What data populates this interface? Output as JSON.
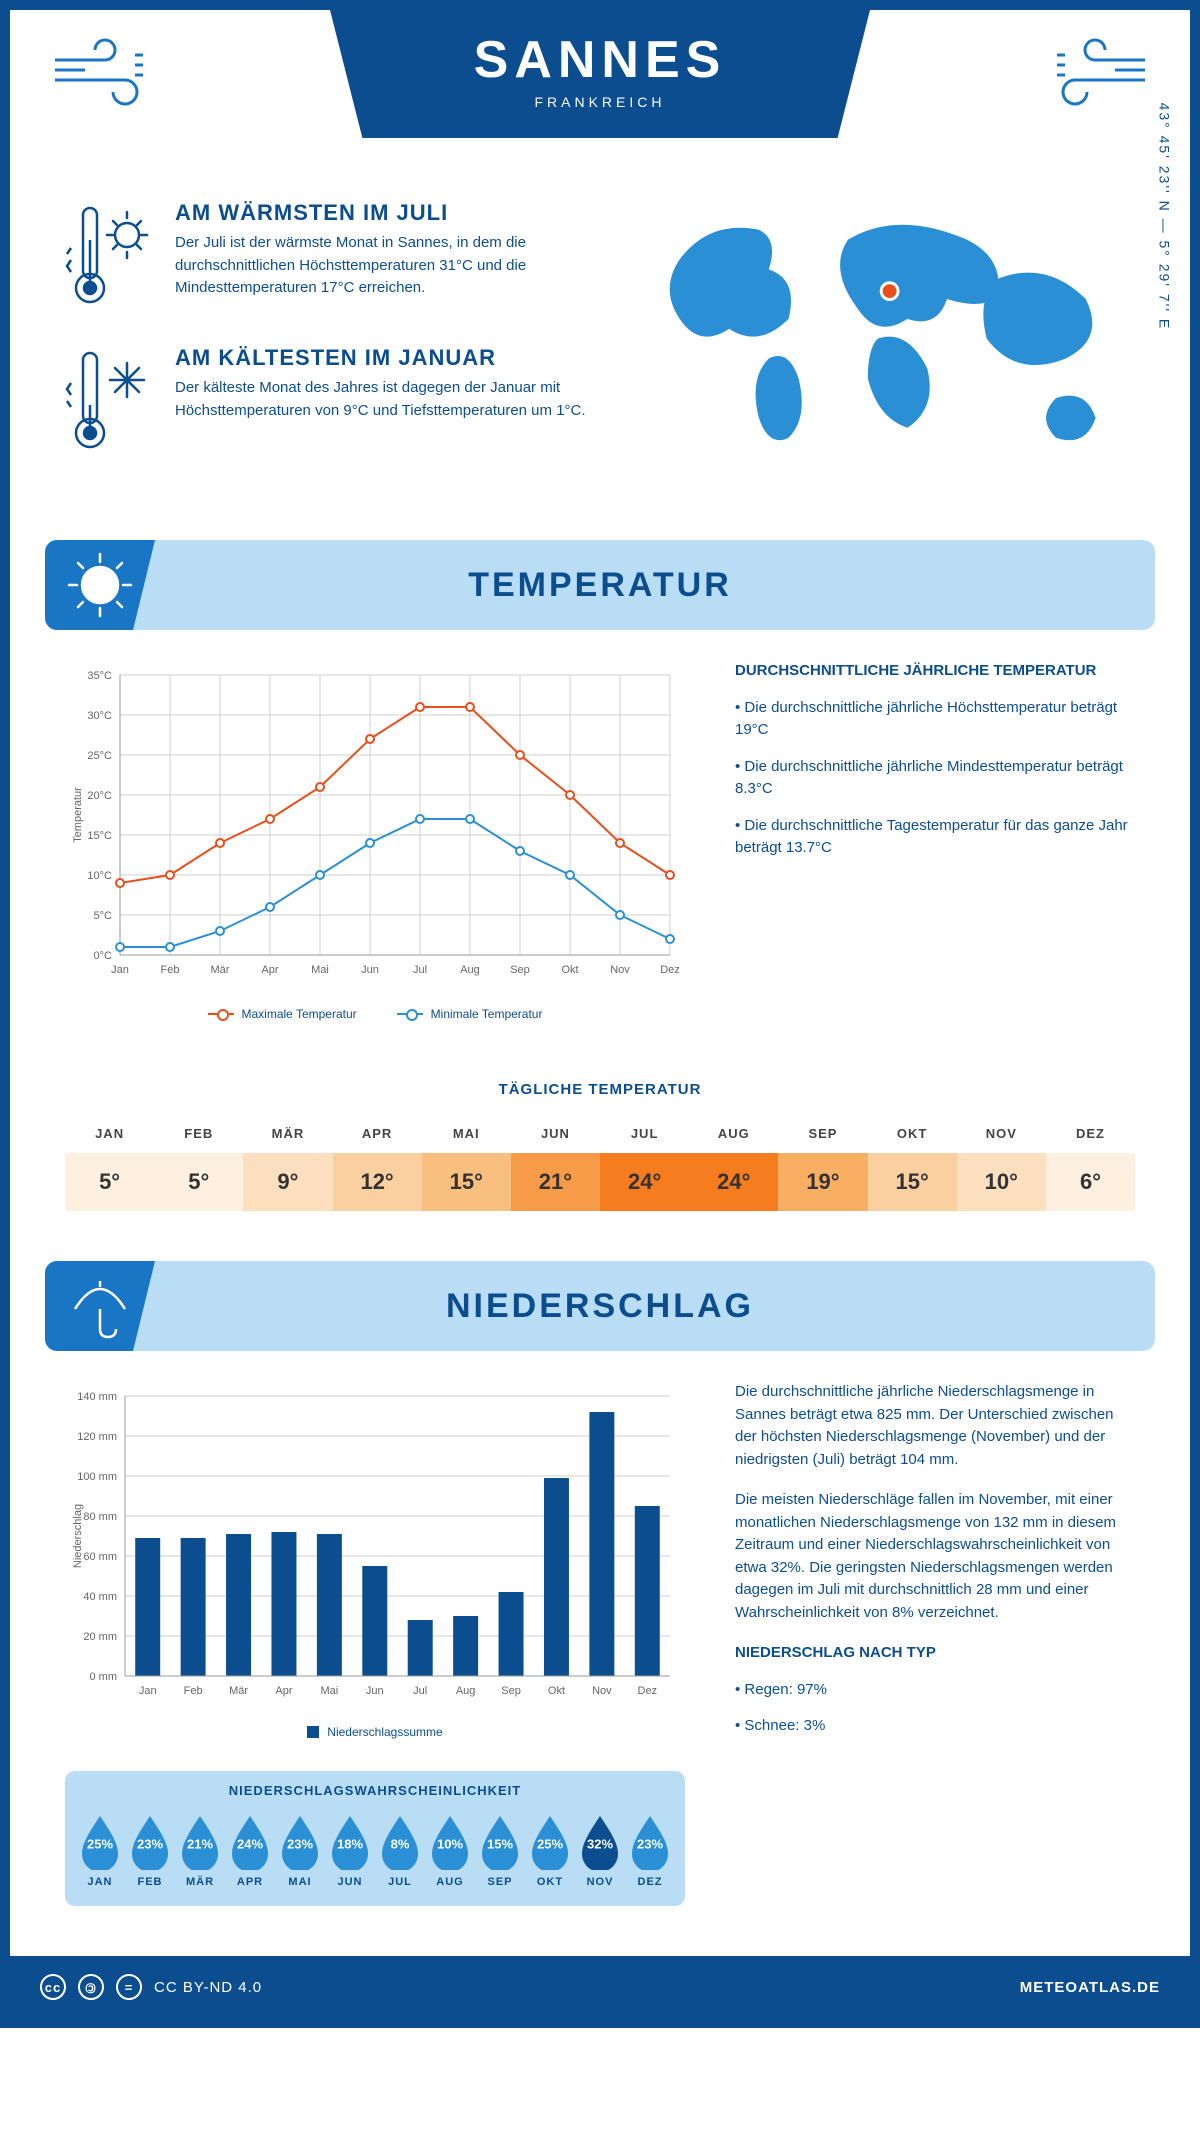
{
  "header": {
    "city": "SANNES",
    "country": "FRANKREICH"
  },
  "coords": "43° 45' 23'' N — 5° 29' 7'' E",
  "facts": {
    "warm": {
      "title": "AM WÄRMSTEN IM JULI",
      "text": "Der Juli ist der wärmste Monat in Sannes, in dem die durchschnittlichen Höchsttemperaturen 31°C und die Mindesttemperaturen 17°C erreichen."
    },
    "cold": {
      "title": "AM KÄLTESTEN IM JANUAR",
      "text": "Der kälteste Monat des Jahres ist dagegen der Januar mit Höchsttemperaturen von 9°C und Tiefsttemperaturen um 1°C."
    }
  },
  "sections": {
    "temp": "TEMPERATUR",
    "precip": "NIEDERSCHLAG"
  },
  "months": [
    "Jan",
    "Feb",
    "Mär",
    "Apr",
    "Mai",
    "Jun",
    "Jul",
    "Aug",
    "Sep",
    "Okt",
    "Nov",
    "Dez"
  ],
  "months_upper": [
    "JAN",
    "FEB",
    "MÄR",
    "APR",
    "MAI",
    "JUN",
    "JUL",
    "AUG",
    "SEP",
    "OKT",
    "NOV",
    "DEZ"
  ],
  "temp_chart": {
    "type": "line",
    "ylabel": "Temperatur",
    "ylim": [
      0,
      35
    ],
    "ytick_step": 5,
    "ytick_suffix": "°C",
    "grid_color": "#cfcfcf",
    "axis_color": "#999",
    "series": [
      {
        "name": "Maximale Temperatur",
        "color": "#e94e1b",
        "values": [
          9,
          10,
          14,
          17,
          21,
          27,
          31,
          31,
          25,
          20,
          14,
          10
        ]
      },
      {
        "name": "Minimale Temperatur",
        "color": "#2a8fd4",
        "values": [
          1,
          1,
          3,
          6,
          10,
          14,
          17,
          17,
          13,
          10,
          5,
          2
        ]
      }
    ],
    "marker": "circle",
    "marker_fill": "#ffffff",
    "line_width": 2,
    "marker_size": 4
  },
  "temp_text": {
    "heading": "DURCHSCHNITTLICHE JÄHRLICHE TEMPERATUR",
    "b1": "• Die durchschnittliche jährliche Höchsttemperatur beträgt 19°C",
    "b2": "• Die durchschnittliche jährliche Mindesttemperatur beträgt 8.3°C",
    "b3": "• Die durchschnittliche Tagestemperatur für das ganze Jahr beträgt 13.7°C"
  },
  "daily_temp": {
    "heading": "TÄGLICHE TEMPERATUR",
    "values": [
      "5°",
      "5°",
      "9°",
      "12°",
      "15°",
      "21°",
      "24°",
      "24°",
      "19°",
      "15°",
      "10°",
      "6°"
    ],
    "colors": [
      "#fdf0e1",
      "#fdf0e1",
      "#fbdfbf",
      "#fad0a0",
      "#f9bf7f",
      "#f79b49",
      "#f57c1f",
      "#f57c1f",
      "#f8af63",
      "#fad0a0",
      "#fbdfbf",
      "#fdf0e1"
    ]
  },
  "precip_chart": {
    "type": "bar",
    "ylabel": "Niederschlag",
    "ylim": [
      0,
      140
    ],
    "ytick_step": 20,
    "ytick_suffix": " mm",
    "bar_color": "#0b4d8f",
    "grid_color": "#cfcfcf",
    "values": [
      69,
      69,
      71,
      72,
      71,
      55,
      28,
      30,
      42,
      99,
      132,
      85
    ],
    "legend": "Niederschlagssumme"
  },
  "precip_text": {
    "p1": "Die durchschnittliche jährliche Niederschlagsmenge in Sannes beträgt etwa 825 mm. Der Unterschied zwischen der höchsten Niederschlagsmenge (November) und der niedrigsten (Juli) beträgt 104 mm.",
    "p2": "Die meisten Niederschläge fallen im November, mit einer monatlichen Niederschlagsmenge von 132 mm in diesem Zeitraum und einer Niederschlagswahrscheinlichkeit von etwa 32%. Die geringsten Niederschlagsmengen werden dagegen im Juli mit durchschnittlich 28 mm und einer Wahrscheinlichkeit von 8% verzeichnet.",
    "type_heading": "NIEDERSCHLAG NACH TYP",
    "type_b1": "• Regen: 97%",
    "type_b2": "• Schnee: 3%"
  },
  "prob": {
    "heading": "NIEDERSCHLAGSWAHRSCHEINLICHKEIT",
    "values": [
      "25%",
      "23%",
      "21%",
      "24%",
      "23%",
      "18%",
      "8%",
      "10%",
      "15%",
      "25%",
      "32%",
      "23%"
    ],
    "colors": [
      "#2a8fd4",
      "#2a8fd4",
      "#2a8fd4",
      "#2a8fd4",
      "#2a8fd4",
      "#2a8fd4",
      "#2a8fd4",
      "#2a8fd4",
      "#2a8fd4",
      "#2a8fd4",
      "#0b4d8f",
      "#2a8fd4"
    ]
  },
  "footer": {
    "license": "CC BY-ND 4.0",
    "site": "METEOATLAS.DE"
  },
  "colors": {
    "primary": "#0b4d8f",
    "light": "#b8ddf5",
    "accent": "#1976c5"
  }
}
